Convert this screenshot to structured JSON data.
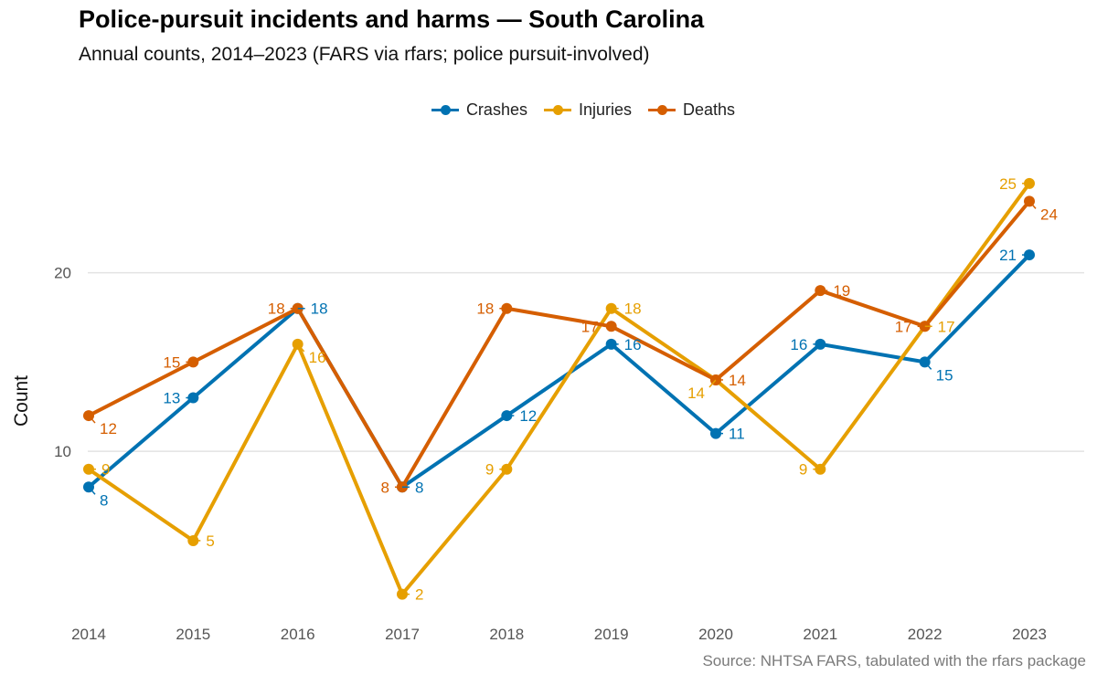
{
  "chart_data": {
    "type": "line",
    "title": "Police-pursuit incidents and harms — South Carolina",
    "subtitle": "Annual counts, 2014–2023 (FARS via rfars; police pursuit-involved)",
    "caption": "Source: NHTSA FARS, tabulated with the rfars package",
    "xlabel": "",
    "ylabel": "Count",
    "categories": [
      "2014",
      "2015",
      "2016",
      "2017",
      "2018",
      "2019",
      "2020",
      "2021",
      "2022",
      "2023"
    ],
    "ylim": [
      0.6,
      27.6
    ],
    "yticks": [
      10,
      20
    ],
    "grid": true,
    "legend_position": "top",
    "series": [
      {
        "name": "Crashes",
        "color": "#0072B2",
        "values": [
          8,
          13,
          18,
          8,
          12,
          16,
          11,
          16,
          15,
          21
        ],
        "label_side": [
          "below-right",
          "left",
          "right",
          "right",
          "right",
          "right",
          "right",
          "left",
          "below-right",
          "left"
        ]
      },
      {
        "name": "Injuries",
        "color": "#E69F00",
        "values": [
          9,
          5,
          16,
          2,
          9,
          18,
          14,
          9,
          17,
          25
        ],
        "label_side": [
          "right",
          "right",
          "below-right",
          "right",
          "left",
          "right",
          "below-left",
          "left",
          "right",
          "left"
        ]
      },
      {
        "name": "Deaths",
        "color": "#D55E00",
        "values": [
          12,
          15,
          18,
          8,
          18,
          17,
          14,
          19,
          17,
          24
        ],
        "label_side": [
          "below-right",
          "left",
          "left",
          "left",
          "left",
          "left",
          "right",
          "right",
          "left",
          "below-right"
        ]
      }
    ]
  }
}
